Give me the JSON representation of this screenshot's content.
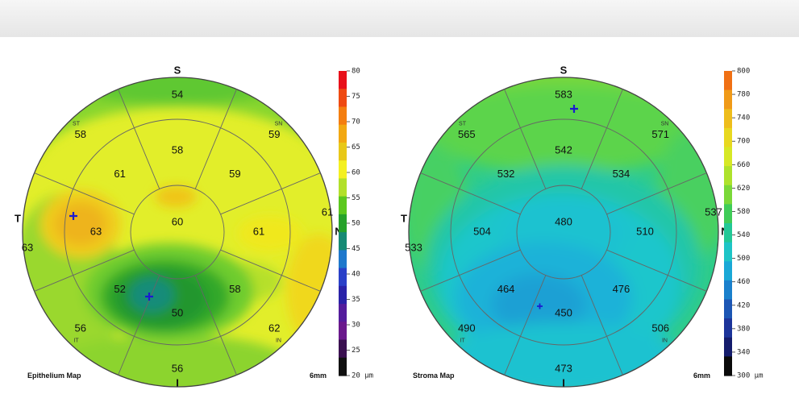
{
  "maps": [
    {
      "id": "epithelium",
      "title": "Epithelium Map",
      "diameter_label": "6mm",
      "directions": {
        "top": "S",
        "bottom": "I",
        "left": "T",
        "right": "N"
      },
      "octant_labels": {
        "top_left": "ST",
        "top_right": "SN",
        "bottom_left": "IT",
        "bottom_right": "IN"
      },
      "center": 60,
      "inner_ring": {
        "S": 58,
        "SN": 59,
        "N": 61,
        "IN": 58,
        "I": 50,
        "IT": 52,
        "T": 63,
        "ST": 61
      },
      "outer_ring": {
        "S": 54,
        "SN": 59,
        "N": 61,
        "IN": 62,
        "I": 56,
        "IT": 56,
        "T": 63,
        "ST": 58
      },
      "scale": {
        "ticks": [
          80,
          75,
          70,
          65,
          60,
          55,
          50,
          45,
          40,
          35,
          30,
          25,
          20
        ],
        "min_label": "20 µm",
        "colors": [
          "#e8101a",
          "#ef4a12",
          "#f47e10",
          "#f2a812",
          "#e8c818",
          "#f4f020",
          "#b2e02a",
          "#5cc81e",
          "#25a22a",
          "#168a74",
          "#1e78cc",
          "#2a40c8",
          "#2a22a8",
          "#541c9c",
          "#6a188c",
          "#3a1050",
          "#101010"
        ]
      }
    },
    {
      "id": "stroma",
      "title": "Stroma Map",
      "diameter_label": "6mm",
      "directions": {
        "top": "S",
        "bottom": "I",
        "left": "T",
        "right": "N"
      },
      "octant_labels": {
        "top_left": "ST",
        "top_right": "SN",
        "bottom_left": "IT",
        "bottom_right": "IN"
      },
      "center": 480,
      "inner_ring": {
        "S": 542,
        "SN": 534,
        "N": 510,
        "IN": 476,
        "I": 450,
        "IT": 464,
        "T": 504,
        "ST": 532
      },
      "outer_ring": {
        "S": 583,
        "SN": 571,
        "N": 537,
        "IN": 506,
        "I": 473,
        "IT": 490,
        "T": 533,
        "ST": 565
      },
      "scale": {
        "ticks": [
          800,
          780,
          740,
          700,
          660,
          620,
          580,
          540,
          500,
          460,
          420,
          380,
          340,
          300
        ],
        "min_label": "300 µm",
        "colors": [
          "#f07014",
          "#f09a18",
          "#eebd1c",
          "#e8d820",
          "#d6e826",
          "#aee22c",
          "#7ad838",
          "#3fcc58",
          "#22c896",
          "#1ec4c6",
          "#1aa8d6",
          "#1a80cc",
          "#1c56b4",
          "#1c349a",
          "#141c6c",
          "#0a0a0a"
        ]
      }
    }
  ]
}
